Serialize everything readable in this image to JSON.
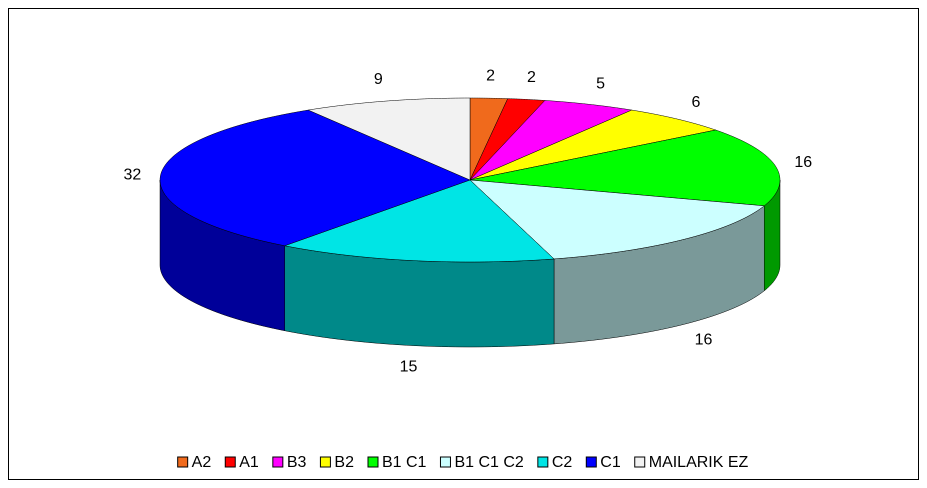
{
  "chart_data": {
    "type": "pie3d",
    "categories": [
      "A2",
      "A1",
      "B3",
      "B2",
      "B1 C1",
      "B1 C1 C2",
      "C2",
      "C1",
      "MAILARIK EZ"
    ],
    "values": [
      2,
      2,
      5,
      6,
      16,
      16,
      15,
      32,
      9
    ],
    "colors": [
      "#f06a1c",
      "#ff0000",
      "#ff00ff",
      "#ffff00",
      "#00ff00",
      "#ccffff",
      "#00e5e5",
      "#0000ff",
      "#f2f2f2"
    ],
    "legend": "bottom"
  }
}
